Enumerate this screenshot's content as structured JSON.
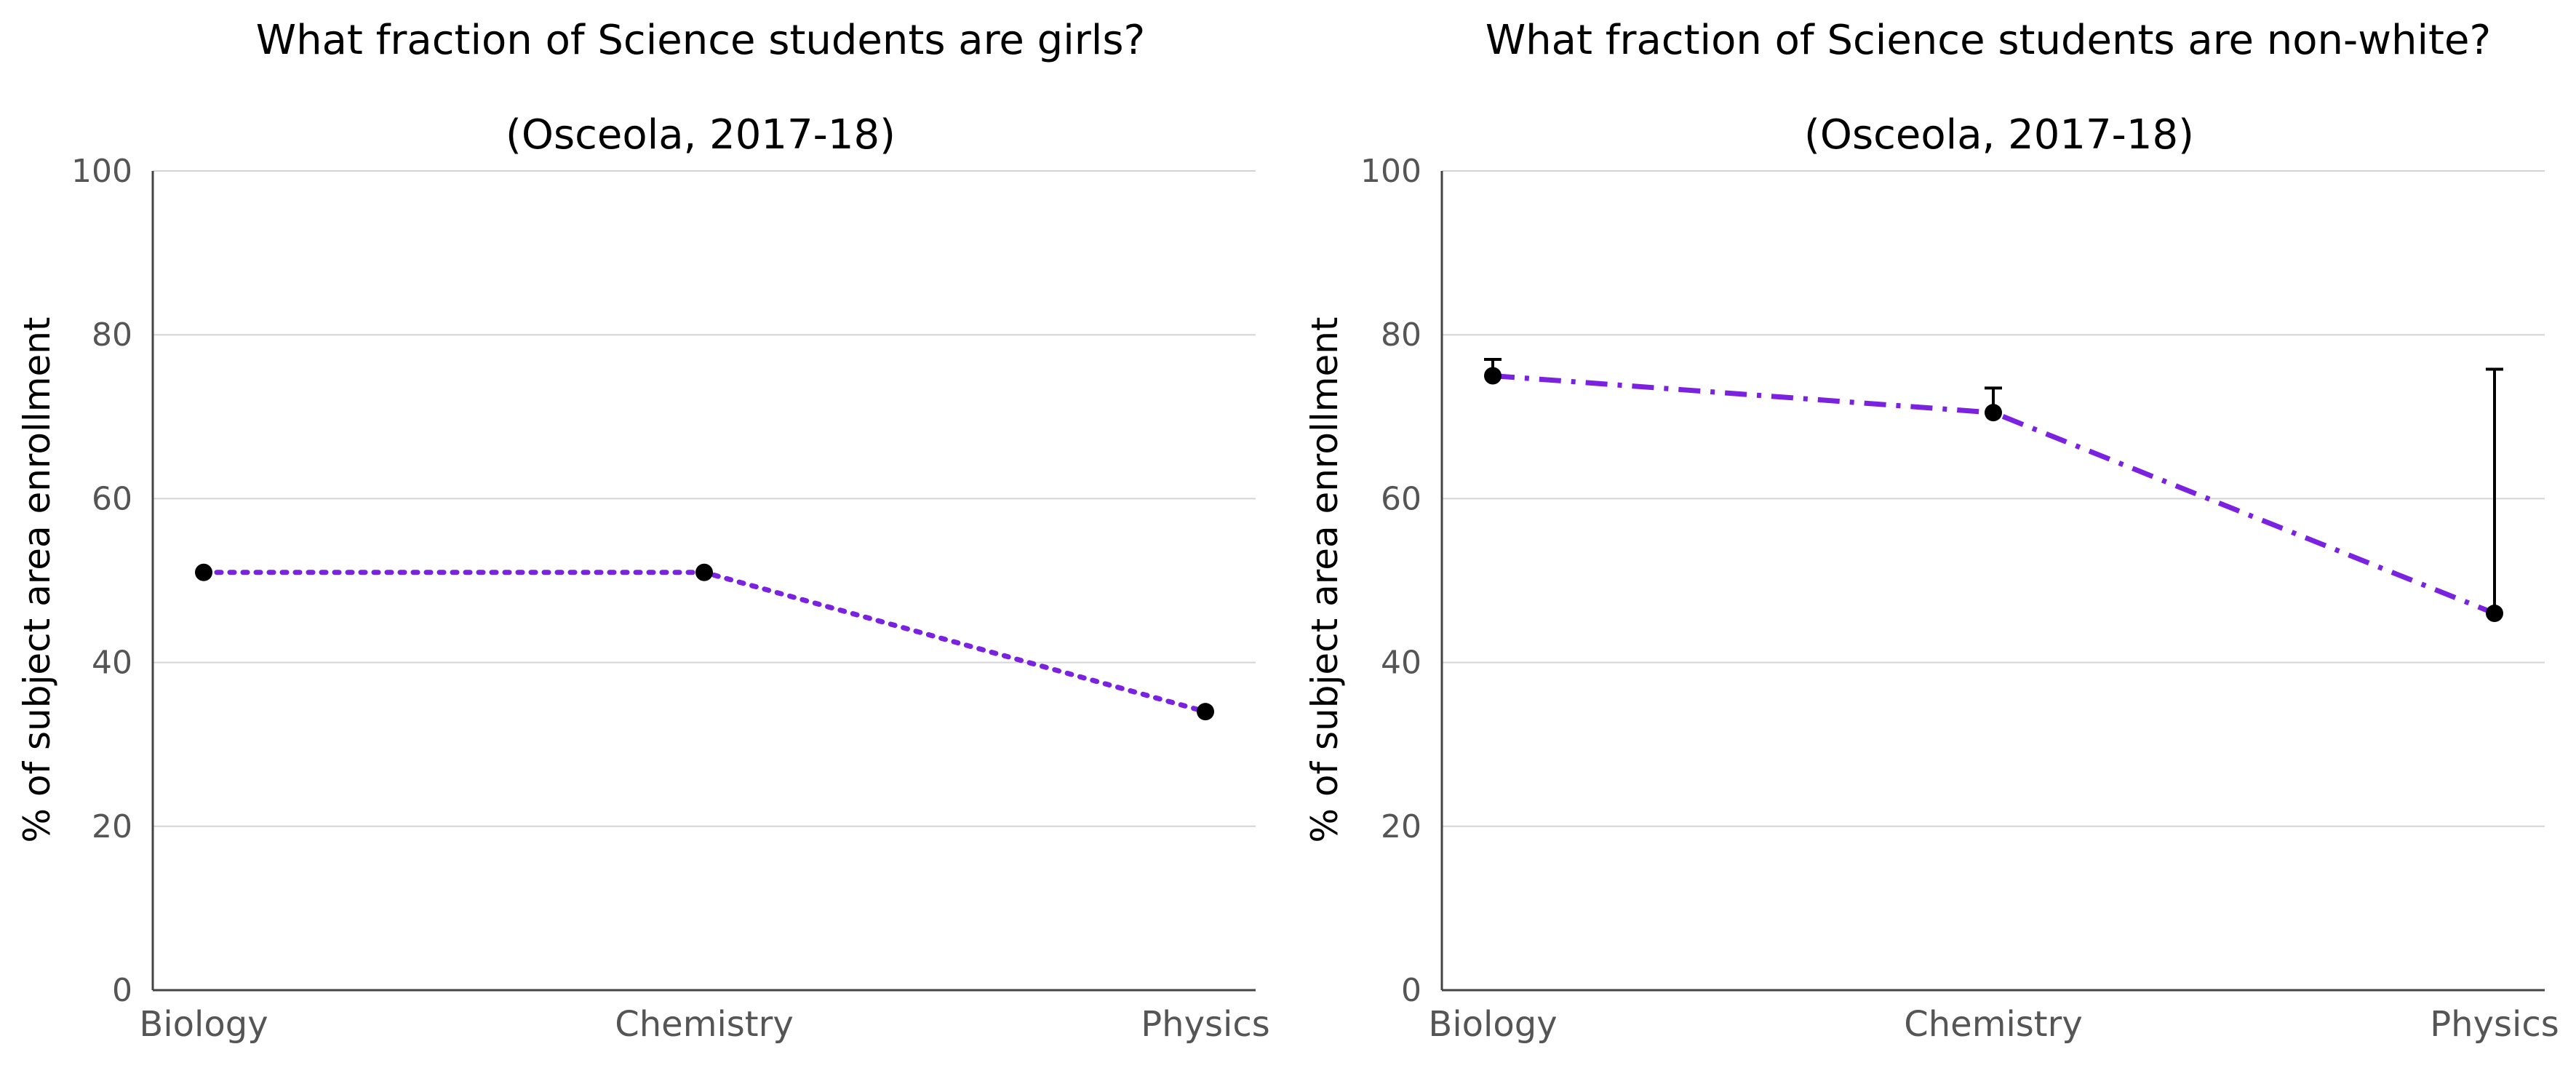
{
  "chart_data": [
    {
      "type": "line",
      "title": "What fraction of Science students are girls?",
      "subtitle": "(Osceola, 2017-18)",
      "xlabel": "",
      "ylabel": "% of subject area enrollment",
      "categories": [
        "Biology",
        "Chemistry",
        "Physics"
      ],
      "ylim": [
        0,
        100
      ],
      "yticks": [
        "0",
        "20",
        "40",
        "60",
        "80",
        "100"
      ],
      "grid": true,
      "line_style": "dotted",
      "line_color": "#7b22e0",
      "marker_color": "#000000",
      "series": [
        {
          "values": [
            51,
            51,
            34
          ]
        }
      ]
    },
    {
      "type": "line",
      "title": "What fraction of Science students are non-white?",
      "subtitle": "(Osceola, 2017-18)",
      "xlabel": "",
      "ylabel": "% of subject area enrollment",
      "categories": [
        "Biology",
        "Chemistry",
        "Physics"
      ],
      "ylim": [
        0,
        100
      ],
      "yticks": [
        "0",
        "20",
        "40",
        "60",
        "80",
        "100"
      ],
      "grid": true,
      "line_style": "dash-dot",
      "line_color": "#7b22e0",
      "marker_color": "#000000",
      "series": [
        {
          "values": [
            75,
            70.5,
            46
          ],
          "error_upper": [
            77,
            73.5,
            75.8
          ]
        }
      ]
    }
  ]
}
